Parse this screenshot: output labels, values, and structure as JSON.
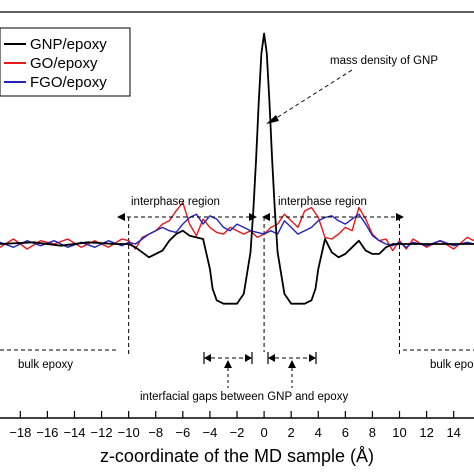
{
  "chart_data": {
    "type": "line",
    "title": "",
    "xlabel": "z-coordinate of the MD sample (Å)",
    "ylabel": "",
    "xlim": [
      -19.5,
      15.5
    ],
    "ylim": [
      -1.05,
      1.4
    ],
    "grid": false,
    "legend_position": "top-left",
    "x_ticks": [
      -18,
      -16,
      -14,
      -12,
      -10,
      -8,
      -6,
      -4,
      -2,
      0,
      2,
      4,
      6,
      8,
      10,
      12,
      14
    ],
    "series": [
      {
        "name": "GNP/epoxy",
        "color": "#000000",
        "x": [
          -19.5,
          -17,
          -15,
          -13,
          -11,
          -10,
          -9.5,
          -9,
          -8.5,
          -8,
          -7.5,
          -7,
          -6.5,
          -6,
          -5.5,
          -5,
          -4.5,
          -4,
          -3.8,
          -3.5,
          -3,
          -2.5,
          -2,
          -1.5,
          -1,
          -0.8,
          -0.6,
          -0.4,
          -0.2,
          0,
          0.2,
          0.4,
          0.6,
          0.8,
          1,
          1.5,
          2,
          2.5,
          3,
          3.5,
          3.8,
          4,
          4.5,
          5,
          5.5,
          6,
          6.5,
          7,
          7.5,
          8,
          8.5,
          9,
          9.5,
          10,
          11,
          12,
          13,
          14,
          15.5
        ],
        "y": [
          0,
          0.01,
          -0.01,
          0.01,
          0,
          0,
          -0.02,
          -0.05,
          -0.08,
          -0.06,
          -0.04,
          0.02,
          0.06,
          0.08,
          0.05,
          0.04,
          0.03,
          -0.15,
          -0.27,
          -0.34,
          -0.36,
          -0.36,
          -0.36,
          -0.3,
          -0.05,
          0.2,
          0.5,
          0.85,
          1.15,
          1.27,
          1.15,
          0.85,
          0.5,
          0.2,
          -0.05,
          -0.3,
          -0.36,
          -0.36,
          -0.36,
          -0.34,
          -0.27,
          -0.15,
          0.03,
          -0.05,
          -0.08,
          -0.06,
          -0.02,
          0.02,
          -0.04,
          -0.06,
          -0.06,
          -0.02,
          0,
          0,
          0,
          0,
          0,
          0,
          0
        ]
      },
      {
        "name": "GO/epoxy",
        "color": "#e41a1c",
        "x": [
          -19.5,
          -18.5,
          -17.5,
          -16.5,
          -15.5,
          -14.5,
          -13.5,
          -12.5,
          -11.5,
          -10.5,
          -10,
          -9.5,
          -9,
          -8.5,
          -8,
          -7.5,
          -7,
          -6.5,
          -6,
          -5.5,
          -5,
          -4.5,
          -4,
          -3.5,
          -3,
          -2.5,
          -2,
          -1.5,
          -1,
          -0.5,
          0,
          0.5,
          1,
          1.5,
          2,
          2.5,
          3,
          3.5,
          4,
          4.5,
          5,
          5.5,
          6,
          6.5,
          7,
          7.5,
          8,
          8.5,
          9,
          9.5,
          10,
          10.5,
          11,
          12,
          13,
          14,
          15,
          15.5
        ],
        "y": [
          -0.02,
          0.03,
          -0.03,
          0.02,
          0,
          0.03,
          -0.02,
          0.02,
          -0.02,
          0.03,
          0.02,
          -0.03,
          0.04,
          0.06,
          0.08,
          0.12,
          0.14,
          0.2,
          0.25,
          0.12,
          0.05,
          0.15,
          0.1,
          0.07,
          0.06,
          0.1,
          0.08,
          0.06,
          0.08,
          0.04,
          0.06,
          0.1,
          0.12,
          0.18,
          0.14,
          0.1,
          0.2,
          0.22,
          0.16,
          0.04,
          0.03,
          0.06,
          0.1,
          0.08,
          0.22,
          0.15,
          0.06,
          0.02,
          0.03,
          -0.04,
          0.02,
          -0.03,
          0.03,
          -0.02,
          0.02,
          -0.03,
          0.04,
          0.02
        ]
      },
      {
        "name": "FGO/epoxy",
        "color": "#2424b8",
        "x": [
          -19.5,
          -18.5,
          -17.5,
          -16.5,
          -15.5,
          -14.5,
          -13.5,
          -12.5,
          -11.5,
          -10.5,
          -10,
          -9.5,
          -9,
          -8.5,
          -8,
          -7.5,
          -7,
          -6.5,
          -6,
          -5.5,
          -5,
          -4.5,
          -4,
          -3.5,
          -3,
          -2.5,
          -2,
          -1.5,
          -1,
          -0.5,
          0,
          0.5,
          1,
          1.5,
          2,
          2.5,
          3,
          3.5,
          4,
          4.5,
          5,
          5.5,
          6,
          6.5,
          7,
          7.5,
          8,
          8.5,
          9,
          9.5,
          10,
          10.5,
          11,
          12,
          13,
          14,
          15,
          15.5
        ],
        "y": [
          0.01,
          -0.02,
          0.02,
          -0.01,
          0.02,
          -0.02,
          0.01,
          -0.02,
          0.02,
          -0.01,
          0.01,
          0,
          0.03,
          0.06,
          0.08,
          0.1,
          0.08,
          0.07,
          0.12,
          0.16,
          0.18,
          0.12,
          0.17,
          0.15,
          0.1,
          0.08,
          0.12,
          0.1,
          0.08,
          0.07,
          0.06,
          0.08,
          0.06,
          0.14,
          0.1,
          0.06,
          0.08,
          0.1,
          0.14,
          0.16,
          0.17,
          0.14,
          0.12,
          0.15,
          0.18,
          0.12,
          0.05,
          0.02,
          0.0,
          -0.01,
          0.01,
          -0.02,
          0.01,
          -0.01,
          0.02,
          -0.01,
          0.01,
          0.0
        ]
      }
    ],
    "annotations": {
      "mass_density": "mass density of GNP",
      "interphase_left": "interphase region",
      "interphase_right": "interphase region",
      "bulk_left": "bulk epoxy",
      "bulk_right": "bulk epoxy",
      "gaps": "interfacial gaps between GNP and epoxy"
    }
  }
}
